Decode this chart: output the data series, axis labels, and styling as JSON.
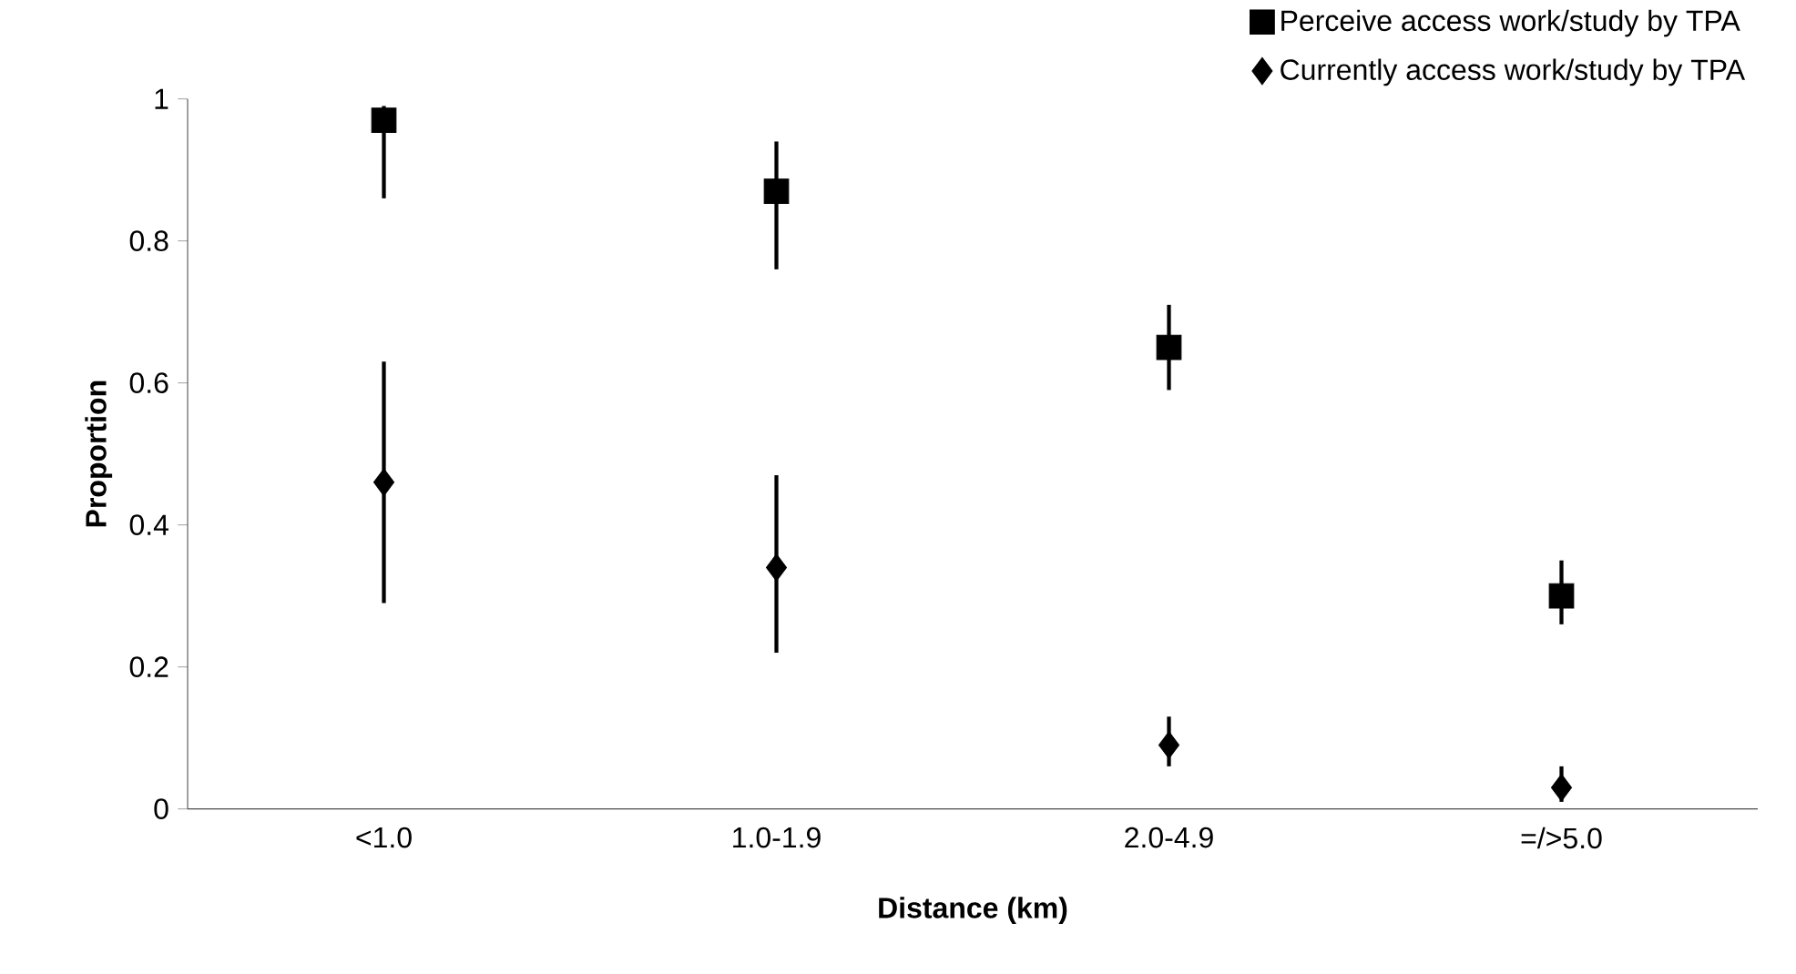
{
  "chart_data": {
    "type": "scatter",
    "xlabel": "Distance (km)",
    "ylabel": "Proportion",
    "categories": [
      "<1.0",
      "1.0-1.9",
      "2.0-4.9",
      "=/>5.0"
    ],
    "series": [
      {
        "name": "Perceive access work/study by TPA",
        "color": "#000000",
        "marker": "square",
        "values": [
          0.97,
          0.87,
          0.65,
          0.3
        ],
        "errors": [
          [
            0.86,
            0.99
          ],
          [
            0.76,
            0.94
          ],
          [
            0.59,
            0.71
          ],
          [
            0.26,
            0.35
          ]
        ]
      },
      {
        "name": "Currently access work/study by TPA",
        "color": "#000000",
        "marker": "diamond",
        "values": [
          0.46,
          0.34,
          0.09,
          0.03
        ],
        "errors": [
          [
            0.29,
            0.63
          ],
          [
            0.22,
            0.47
          ],
          [
            0.06,
            0.13
          ],
          [
            0.01,
            0.06
          ]
        ]
      }
    ],
    "ylim": [
      0,
      1
    ],
    "yticks": [
      0,
      0.2,
      0.4,
      0.6,
      0.8,
      1
    ],
    "grid": false,
    "legend": "top right"
  }
}
